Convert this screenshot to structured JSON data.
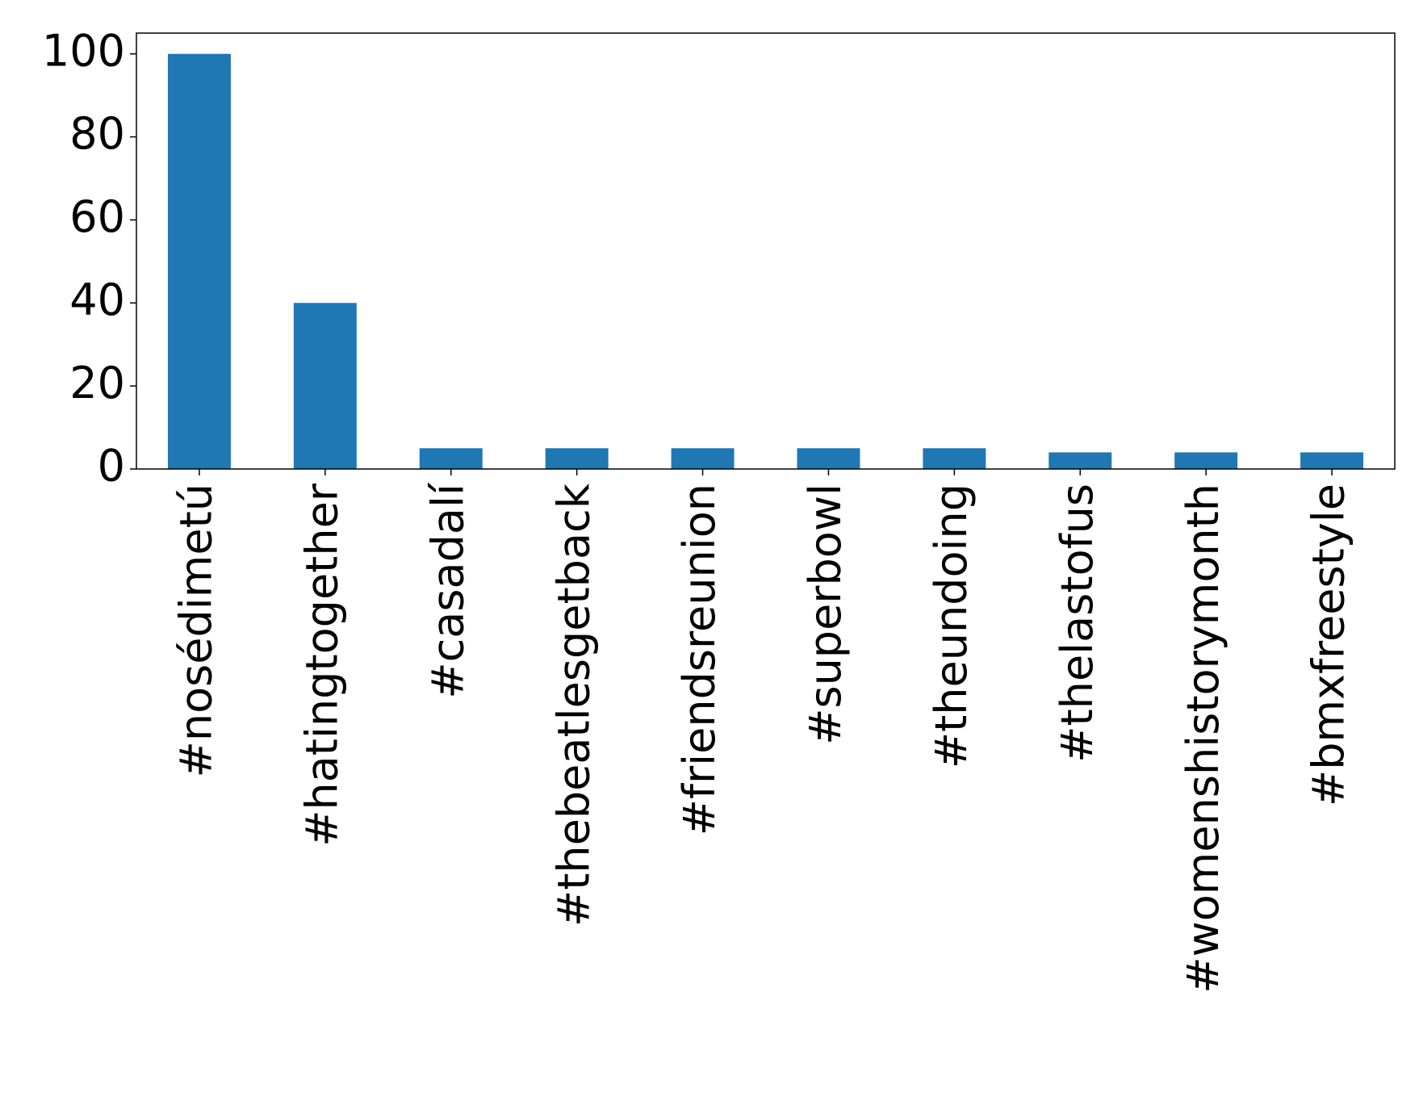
{
  "chart_data": {
    "type": "bar",
    "categories": [
      "#nosédimetú",
      "#hatingtogether",
      "#casadalí",
      "#thebeatlesgetback",
      "#friendsreunion",
      "#superbowl",
      "#theundoing",
      "#thelastofus",
      "#womenshistorymonth",
      "#bmxfreestyle"
    ],
    "values": [
      100,
      40,
      5,
      5,
      5,
      5,
      5,
      4,
      4,
      4
    ],
    "color": "#1f77b4",
    "ylim": [
      0,
      105
    ],
    "yticks": [
      0,
      20,
      40,
      60,
      80,
      100
    ],
    "grid": false
  }
}
